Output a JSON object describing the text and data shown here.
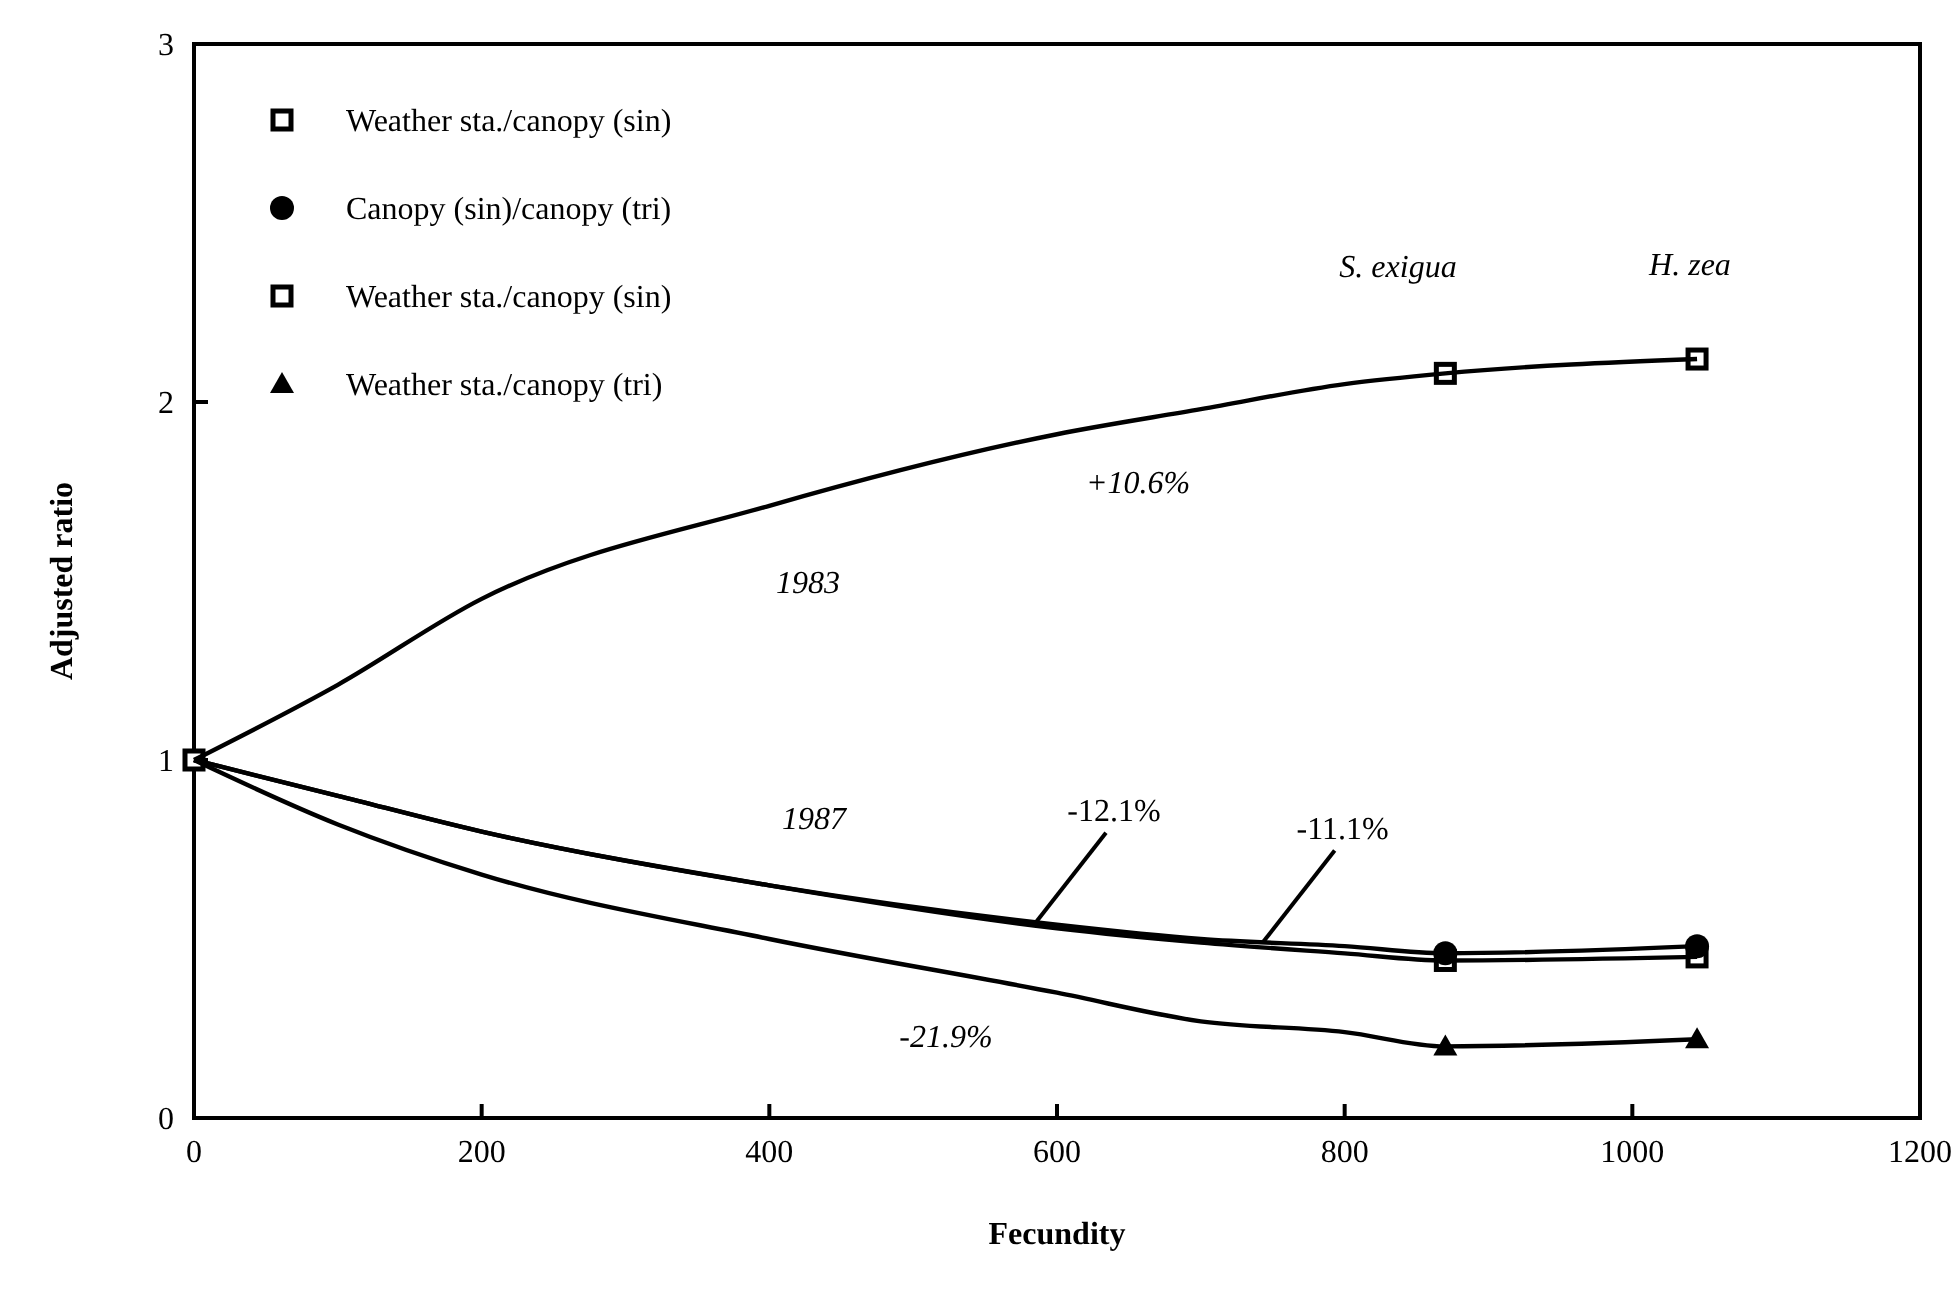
{
  "chart_data": {
    "type": "line",
    "xlabel": "Fecundity",
    "ylabel": "Adjusted ratio",
    "xlim": [
      0,
      1200
    ],
    "xticks": [
      0,
      200,
      400,
      600,
      800,
      1000,
      1200
    ],
    "ylim": [
      0,
      3
    ],
    "yticks": [
      0,
      1,
      2,
      3
    ],
    "grid": false,
    "legend": "top left",
    "series": [
      {
        "color": "#000000",
        "marker": "none",
        "x": [
          0,
          100,
          200,
          400,
          600,
          700,
          800,
          870,
          1045
        ],
        "values": [
          1,
          1.21,
          1.45,
          1.71,
          1.91,
          1.98,
          2.05,
          2.08,
          2.12
        ]
      },
      {
        "color": "#000000",
        "marker": "none",
        "x": [
          0,
          100,
          200,
          400,
          600,
          700,
          800,
          870,
          1045
        ],
        "values": [
          1,
          0.9,
          0.8,
          0.65,
          0.54,
          0.5,
          0.48,
          0.46,
          0.48
        ]
      },
      {
        "color": "#000000",
        "marker": "none",
        "x": [
          0,
          100,
          200,
          400,
          600,
          700,
          800,
          870,
          1045
        ],
        "values": [
          1,
          0.9,
          0.8,
          0.65,
          0.53,
          0.49,
          0.46,
          0.44,
          0.45
        ]
      },
      {
        "color": "#000000",
        "marker": "none",
        "x": [
          0,
          100,
          200,
          400,
          600,
          700,
          800,
          870,
          1045
        ],
        "values": [
          1,
          0.82,
          0.68,
          0.5,
          0.35,
          0.27,
          0.24,
          0.2,
          0.22
        ]
      },
      {
        "type": "scatter",
        "name": "Weather sta./canopy (sin)",
        "color": "#000000",
        "marker": "square",
        "x": [
          0,
          870,
          1045
        ],
        "values": [
          1,
          2.08,
          2.12
        ]
      },
      {
        "type": "scatter",
        "name": "Canopy (sin)/canopy (tri)",
        "color": "#000000",
        "marker": "circle",
        "x": [
          870,
          1045
        ],
        "values": [
          0.46,
          0.48
        ]
      },
      {
        "type": "scatter",
        "name": "Weather sta./canopy (sin)",
        "color": "#000000",
        "marker": "square",
        "x": [
          870,
          1045
        ],
        "values": [
          0.44,
          0.45
        ]
      },
      {
        "type": "scatter",
        "name": "Weather sta./canopy (tri)",
        "color": "#000000",
        "marker": "triangle",
        "x": [
          870,
          1045
        ],
        "values": [
          0.2,
          0.22
        ]
      }
    ],
    "annotations": [
      "S. exigua",
      "H. zea",
      "+10.6%",
      "1983",
      "1987",
      {
        "text": "-12.1%",
        "x": 584,
        "y": 0.54
      },
      {
        "text": "-11.1%",
        "x": 743,
        "y": 0.49
      },
      "-21.9%"
    ]
  }
}
